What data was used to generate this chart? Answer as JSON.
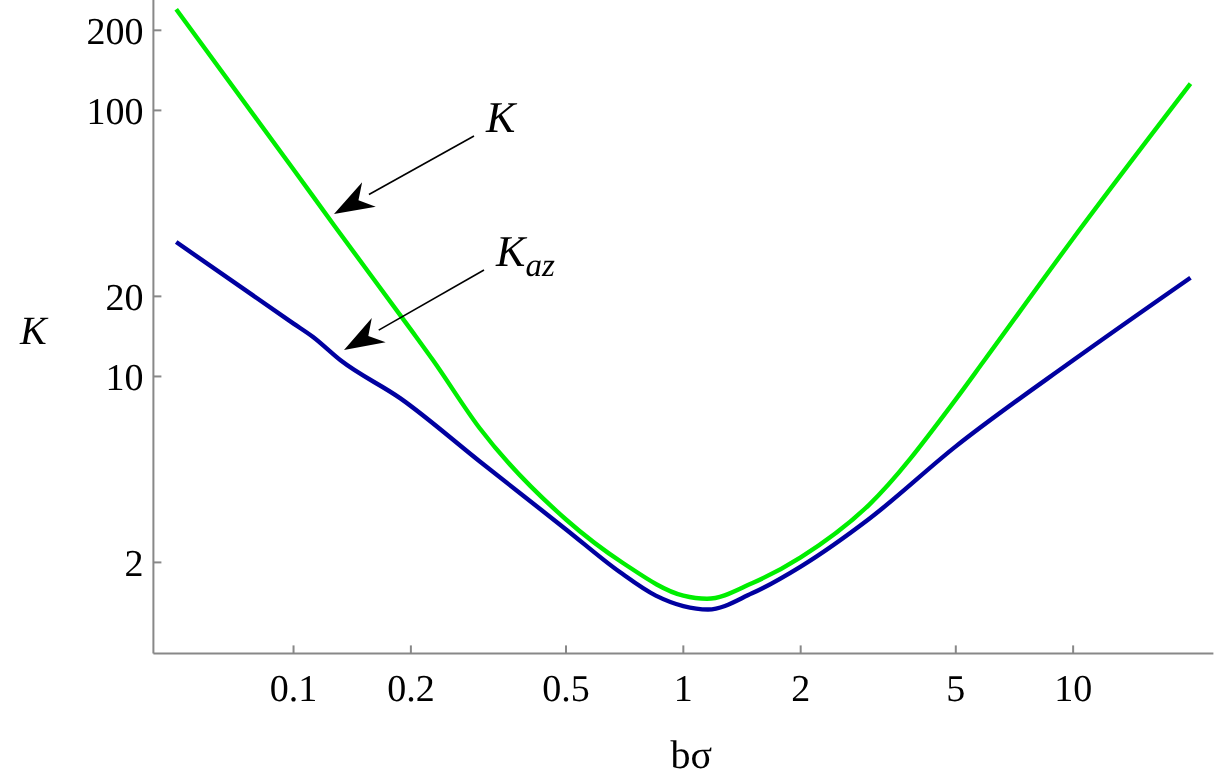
{
  "chart_data": {
    "type": "line",
    "xlabel": "bσ",
    "ylabel": "K",
    "log": "xy",
    "xlim": [
      0.0437,
      22.9
    ],
    "ylim": [
      0.91,
      260
    ],
    "xticks": [
      0.1,
      0.2,
      0.5,
      1,
      2,
      5,
      10
    ],
    "yticks": [
      2,
      10,
      20,
      100,
      200
    ],
    "marker": "none",
    "line_style": "solid",
    "series": [
      {
        "color": "#00ee00",
        "x": [
          0.05,
          0.1,
          0.127,
          0.2,
          0.228,
          0.3,
          0.5,
          0.7,
          1,
          1.15,
          1.5,
          2,
          3,
          5,
          5.92,
          10,
          20
        ],
        "values": [
          240,
          60,
          37,
          15,
          11.5,
          6.4,
          2.9,
          1.99,
          1.5,
          1.46,
          1.67,
          2.09,
          3.3,
          8.2,
          11.5,
          33,
          126
        ]
      },
      {
        "color": "#0000a0",
        "x": [
          0.05,
          0.1,
          0.112,
          0.132,
          0.188,
          0.3,
          0.502,
          0.687,
          0.85,
          1,
          1.157,
          1.5,
          2,
          3,
          5,
          10,
          20
        ],
        "values": [
          32,
          15.8,
          14.1,
          11.5,
          8.27,
          4.8,
          2.65,
          1.84,
          1.5,
          1.37,
          1.33,
          1.53,
          1.93,
          2.92,
          5.46,
          11.5,
          23.5
        ]
      }
    ],
    "annotations": [
      "K",
      "K$_{az}$"
    ]
  }
}
